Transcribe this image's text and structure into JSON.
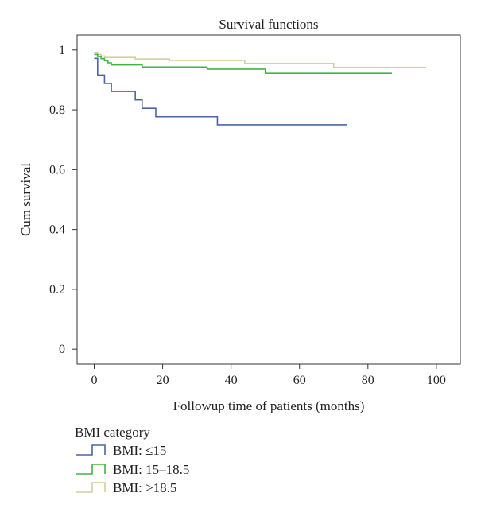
{
  "chart_data": {
    "type": "line",
    "subtype": "step",
    "title": "Survival functions",
    "xlabel": "Followup time of patients (months)",
    "ylabel": "Cum survival",
    "xlim": [
      -5,
      107
    ],
    "ylim": [
      -0.05,
      1.05
    ],
    "x_ticks": [
      0,
      20,
      40,
      60,
      80,
      100
    ],
    "x_tick_labels": [
      "0",
      "20",
      "40",
      "60",
      "80",
      "100"
    ],
    "y_ticks": [
      0,
      0.2,
      0.4,
      0.6,
      0.8,
      1
    ],
    "y_tick_labels": [
      "0",
      "0.2",
      "0.4",
      "0.6",
      "0.8",
      "1"
    ],
    "grid": false,
    "legend": {
      "title": "BMI category",
      "placement": "bottom-left",
      "entries": [
        "BMI: ≤15",
        "BMI: 15–18.5",
        "BMI: >18.5"
      ]
    },
    "series": [
      {
        "name": "BMI: ≤15",
        "color": "#4a64a8",
        "x": [
          0,
          1,
          3,
          5,
          12,
          14,
          18,
          36,
          74
        ],
        "y": [
          0.972,
          0.916,
          0.888,
          0.861,
          0.833,
          0.805,
          0.777,
          0.75,
          0.75
        ]
      },
      {
        "name": "BMI: 15–18.5",
        "color": "#3fb543",
        "x": [
          0,
          1,
          2,
          3,
          4,
          5,
          14,
          33,
          50,
          87
        ],
        "y": [
          0.985,
          0.978,
          0.971,
          0.964,
          0.957,
          0.95,
          0.943,
          0.936,
          0.922,
          0.922
        ]
      },
      {
        "name": "BMI: >18.5",
        "color": "#d4cfa0",
        "x": [
          0,
          1,
          2,
          3,
          12,
          22,
          44,
          70,
          97
        ],
        "y": [
          0.99,
          0.985,
          0.98,
          0.975,
          0.97,
          0.965,
          0.955,
          0.942,
          0.942
        ]
      }
    ]
  }
}
